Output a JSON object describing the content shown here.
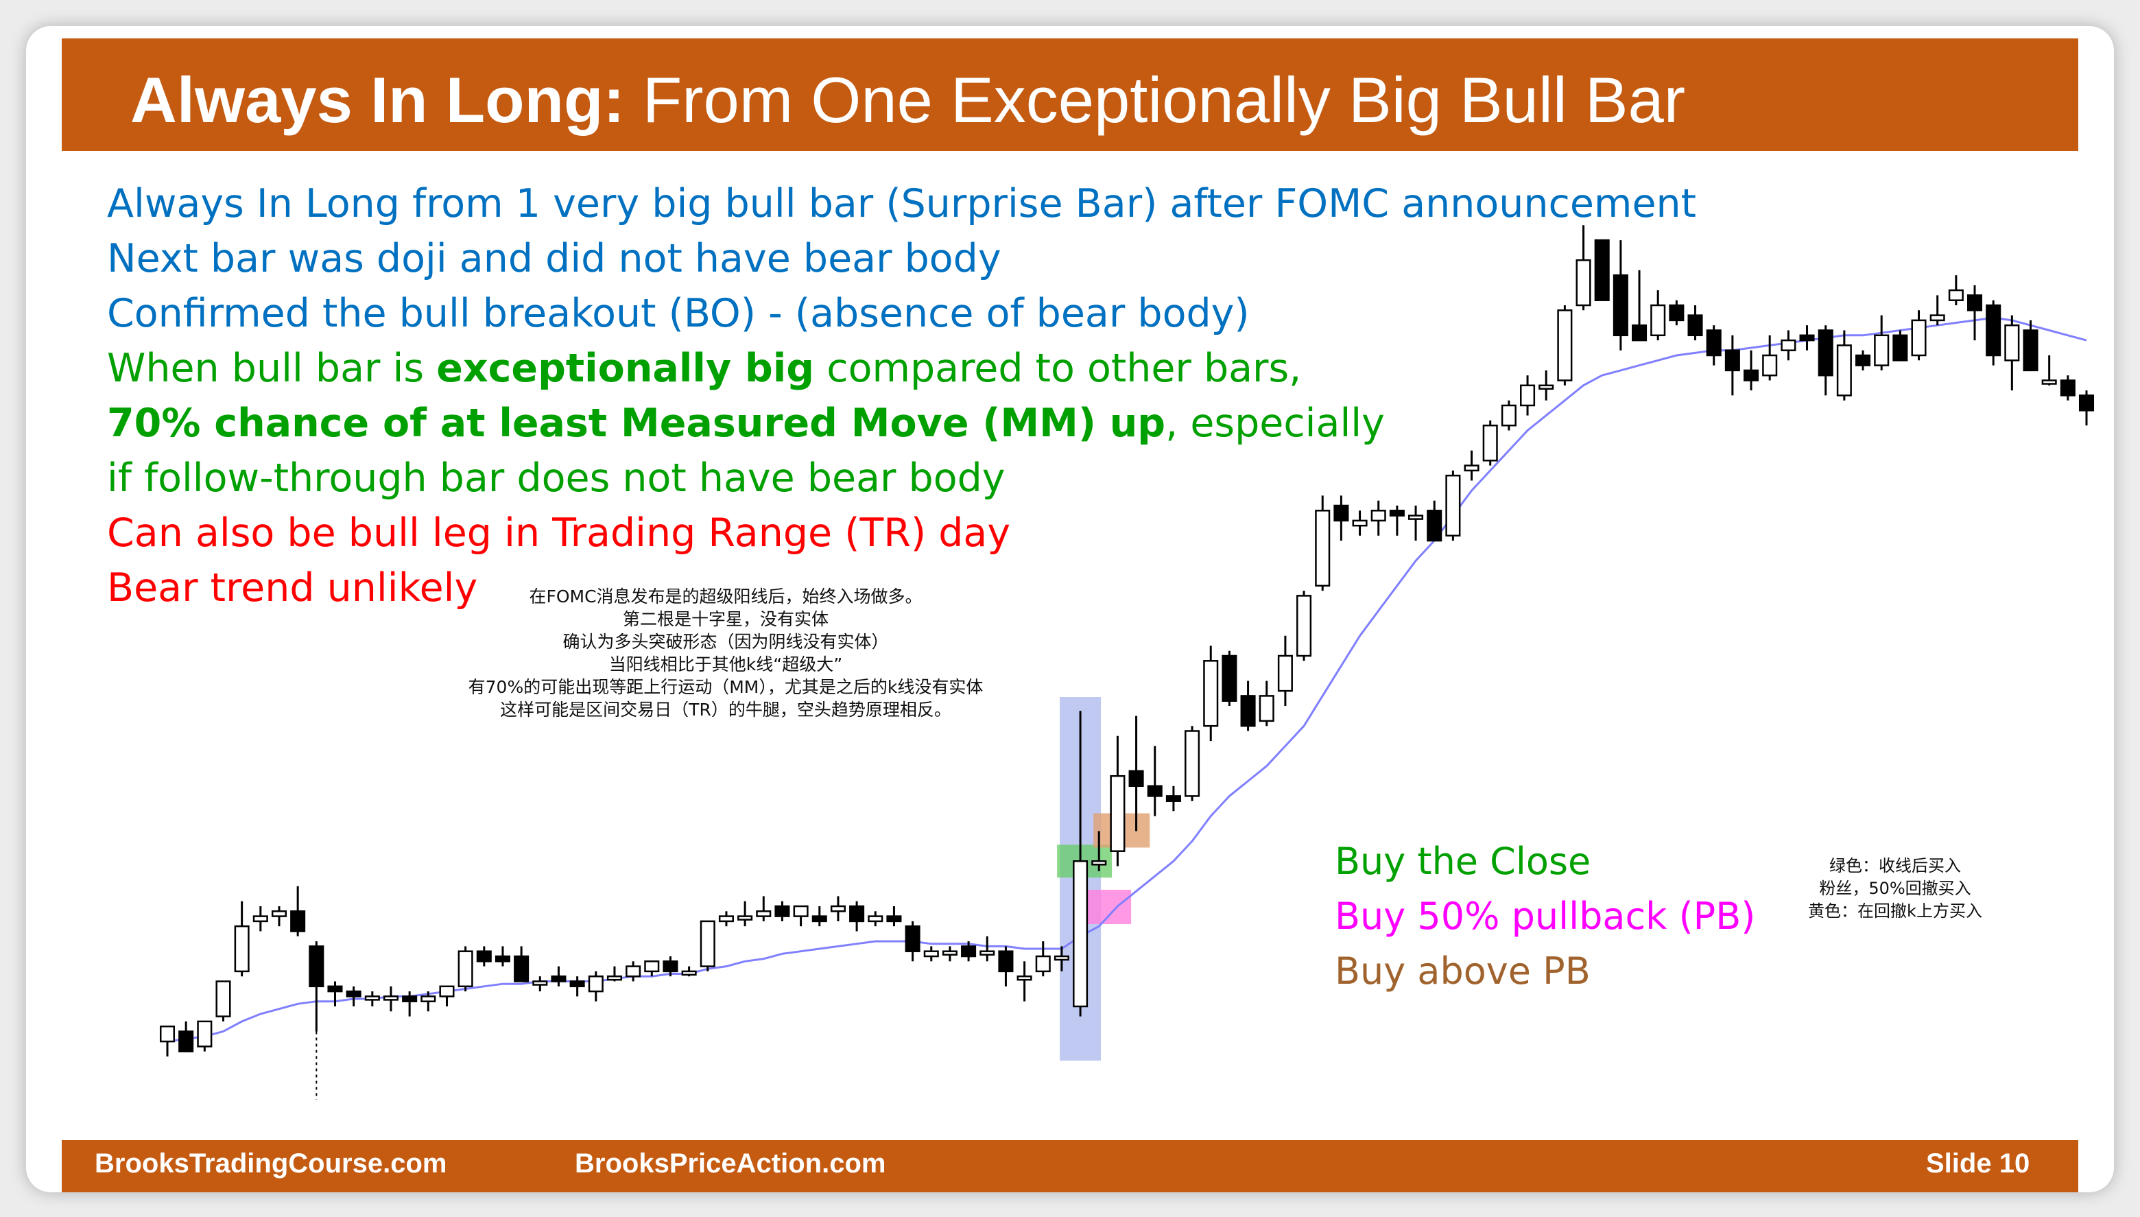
{
  "title": {
    "bold": "Always In Long:",
    "rest": " From One Exceptionally Big Bull Bar"
  },
  "lines": {
    "l1": "Always In Long from 1 very big bull bar (Surprise Bar) after FOMC announcement",
    "l2": "Next bar was doji and did not have bear body",
    "l3": "Confirmed the bull breakout (BO) - (absence of bear body)",
    "l4a": "When bull bar is ",
    "l4b": "exceptionally big",
    "l4c": " compared to other bars,",
    "l5a": "70% chance of at least Measured Move (MM) up",
    "l5b": ", especially",
    "l6": "if follow-through bar does not have bear body",
    "l7": "Can also be bull leg in Trading Range (TR) day",
    "l8": "Bear trend unlikely"
  },
  "cn_notes": [
    "在FOMC消息发布是的超级阳线后，始终入场做多。",
    "第二根是十字星，没有实体",
    "确认为多头突破形态（因为阴线没有实体）",
    "当阳线相比于其他k线“超级大”",
    "有70%的可能出现等距上行运动（MM），尤其是之后的k线没有实体",
    "这样可能是区间交易日（TR）的牛腿，空头趋势原理相反。"
  ],
  "legend": {
    "buy_close": "Buy the Close",
    "buy_pullback": "Buy 50% pullback (PB)",
    "buy_above": "Buy above PB"
  },
  "color_note": [
    "绿色：收线后买入",
    "粉丝，50%回撤买入",
    "黄色：在回撤k上方买入"
  ],
  "footer": {
    "left": "BrooksTradingCourse.com",
    "center": "BrooksPriceAction.com",
    "slide": "Slide  10"
  },
  "colors": {
    "header": "#c55a11",
    "blue_text": "#0070c0",
    "green_text": "#00a000",
    "red_text": "#ff0000",
    "ema": "#8080ff",
    "highlight_bar": "#8c9de6",
    "buy_close_zone": "#66cc66",
    "pullback_zone": "#ff80e0",
    "above_pb_zone": "#e0a070"
  },
  "chart_data": {
    "type": "candlestick",
    "price_range": [
      0,
      100
    ],
    "candles": [
      {
        "o": 3,
        "h": 6,
        "l": 0,
        "c": 6
      },
      {
        "o": 5,
        "h": 7,
        "l": 1,
        "c": 1
      },
      {
        "o": 2,
        "h": 7,
        "l": 1,
        "c": 7
      },
      {
        "o": 8,
        "h": 15,
        "l": 7,
        "c": 15
      },
      {
        "o": 17,
        "h": 31,
        "l": 16,
        "c": 26
      },
      {
        "o": 27,
        "h": 30,
        "l": 25,
        "c": 28
      },
      {
        "o": 28,
        "h": 30,
        "l": 26,
        "c": 29
      },
      {
        "o": 29,
        "h": 34,
        "l": 24,
        "c": 25
      },
      {
        "o": 22,
        "h": 23,
        "l": 5,
        "c": 14
      },
      {
        "o": 14,
        "h": 15,
        "l": 10,
        "c": 13
      },
      {
        "o": 13,
        "h": 14,
        "l": 10,
        "c": 12
      },
      {
        "o": 12,
        "h": 13,
        "l": 10,
        "c": 12
      },
      {
        "o": 12,
        "h": 14,
        "l": 9,
        "c": 12
      },
      {
        "o": 12,
        "h": 13,
        "l": 8,
        "c": 11
      },
      {
        "o": 11,
        "h": 13,
        "l": 9,
        "c": 12
      },
      {
        "o": 12,
        "h": 14,
        "l": 10,
        "c": 14
      },
      {
        "o": 14,
        "h": 22,
        "l": 13,
        "c": 21
      },
      {
        "o": 21,
        "h": 22,
        "l": 18,
        "c": 19
      },
      {
        "o": 20,
        "h": 22,
        "l": 18,
        "c": 19
      },
      {
        "o": 20,
        "h": 22,
        "l": 16,
        "c": 15
      },
      {
        "o": 15,
        "h": 16,
        "l": 13,
        "c": 15
      },
      {
        "o": 16,
        "h": 18,
        "l": 14,
        "c": 15
      },
      {
        "o": 15,
        "h": 16,
        "l": 12,
        "c": 14
      },
      {
        "o": 13,
        "h": 17,
        "l": 11,
        "c": 16
      },
      {
        "o": 16,
        "h": 18,
        "l": 15,
        "c": 16
      },
      {
        "o": 16,
        "h": 19,
        "l": 15,
        "c": 18
      },
      {
        "o": 17,
        "h": 19,
        "l": 16,
        "c": 19
      },
      {
        "o": 19,
        "h": 20,
        "l": 16,
        "c": 17
      },
      {
        "o": 17,
        "h": 18,
        "l": 16,
        "c": 17
      },
      {
        "o": 18,
        "h": 27,
        "l": 17,
        "c": 27
      },
      {
        "o": 27,
        "h": 29,
        "l": 26,
        "c": 28
      },
      {
        "o": 28,
        "h": 31,
        "l": 26,
        "c": 28
      },
      {
        "o": 28,
        "h": 32,
        "l": 27,
        "c": 29
      },
      {
        "o": 30,
        "h": 31,
        "l": 27,
        "c": 28
      },
      {
        "o": 28,
        "h": 30,
        "l": 26,
        "c": 30
      },
      {
        "o": 28,
        "h": 30,
        "l": 26,
        "c": 27
      },
      {
        "o": 29,
        "h": 32,
        "l": 27,
        "c": 30
      },
      {
        "o": 30,
        "h": 31,
        "l": 25,
        "c": 27
      },
      {
        "o": 27,
        "h": 29,
        "l": 26,
        "c": 28
      },
      {
        "o": 28,
        "h": 30,
        "l": 26,
        "c": 27
      },
      {
        "o": 26,
        "h": 27,
        "l": 19,
        "c": 21
      },
      {
        "o": 20,
        "h": 22,
        "l": 19,
        "c": 21
      },
      {
        "o": 21,
        "h": 22,
        "l": 19,
        "c": 21
      },
      {
        "o": 22,
        "h": 23,
        "l": 19,
        "c": 20
      },
      {
        "o": 21,
        "h": 24,
        "l": 19,
        "c": 21
      },
      {
        "o": 21,
        "h": 22,
        "l": 14,
        "c": 17
      },
      {
        "o": 16,
        "h": 19,
        "l": 11,
        "c": 16
      },
      {
        "o": 17,
        "h": 23,
        "l": 16,
        "c": 20
      },
      {
        "o": 20,
        "h": 22,
        "l": 17,
        "c": 20
      },
      {
        "o": 10,
        "h": 69,
        "l": 8,
        "c": 39
      },
      {
        "o": 39,
        "h": 45,
        "l": 37,
        "c": 39
      },
      {
        "o": 41,
        "h": 64,
        "l": 38,
        "c": 56
      },
      {
        "o": 57,
        "h": 68,
        "l": 45,
        "c": 54
      },
      {
        "o": 54,
        "h": 62,
        "l": 48,
        "c": 52
      },
      {
        "o": 52,
        "h": 54,
        "l": 49,
        "c": 51
      },
      {
        "o": 52,
        "h": 66,
        "l": 51,
        "c": 65
      },
      {
        "o": 66,
        "h": 82,
        "l": 63,
        "c": 79
      },
      {
        "o": 80,
        "h": 81,
        "l": 70,
        "c": 71
      },
      {
        "o": 72,
        "h": 75,
        "l": 65,
        "c": 66
      },
      {
        "o": 67,
        "h": 75,
        "l": 66,
        "c": 72
      },
      {
        "o": 73,
        "h": 84,
        "l": 70,
        "c": 80
      },
      {
        "o": 80,
        "h": 93,
        "l": 79,
        "c": 92
      },
      {
        "o": 94,
        "h": 112,
        "l": 93,
        "c": 109
      },
      {
        "o": 110,
        "h": 112,
        "l": 103,
        "c": 107
      },
      {
        "o": 106,
        "h": 109,
        "l": 104,
        "c": 107
      },
      {
        "o": 107,
        "h": 111,
        "l": 104,
        "c": 109
      },
      {
        "o": 109,
        "h": 110,
        "l": 104,
        "c": 108
      },
      {
        "o": 108,
        "h": 110,
        "l": 103,
        "c": 108
      },
      {
        "o": 109,
        "h": 111,
        "l": 103,
        "c": 103
      },
      {
        "o": 104,
        "h": 117,
        "l": 103,
        "c": 116
      },
      {
        "o": 117,
        "h": 121,
        "l": 115,
        "c": 118
      },
      {
        "o": 119,
        "h": 127,
        "l": 118,
        "c": 126
      },
      {
        "o": 126,
        "h": 131,
        "l": 125,
        "c": 130
      },
      {
        "o": 130,
        "h": 136,
        "l": 128,
        "c": 134
      },
      {
        "o": 134,
        "h": 137,
        "l": 131,
        "c": 134
      },
      {
        "o": 135,
        "h": 150,
        "l": 134,
        "c": 149
      },
      {
        "o": 150,
        "h": 166,
        "l": 149,
        "c": 159
      },
      {
        "o": 163,
        "h": 162,
        "l": 152,
        "c": 151
      },
      {
        "o": 156,
        "h": 163,
        "l": 141,
        "c": 144
      },
      {
        "o": 146,
        "h": 157,
        "l": 143,
        "c": 143
      },
      {
        "o": 144,
        "h": 153,
        "l": 143,
        "c": 150
      },
      {
        "o": 150,
        "h": 151,
        "l": 146,
        "c": 147
      },
      {
        "o": 148,
        "h": 150,
        "l": 143,
        "c": 144
      },
      {
        "o": 145,
        "h": 146,
        "l": 138,
        "c": 140
      },
      {
        "o": 141,
        "h": 144,
        "l": 132,
        "c": 137
      },
      {
        "o": 137,
        "h": 141,
        "l": 133,
        "c": 135
      },
      {
        "o": 136,
        "h": 144,
        "l": 135,
        "c": 140
      },
      {
        "o": 141,
        "h": 145,
        "l": 139,
        "c": 143
      },
      {
        "o": 144,
        "h": 146,
        "l": 141,
        "c": 143
      },
      {
        "o": 145,
        "h": 146,
        "l": 132,
        "c": 136
      },
      {
        "o": 132,
        "h": 145,
        "l": 131,
        "c": 142
      },
      {
        "o": 140,
        "h": 141,
        "l": 137,
        "c": 138
      },
      {
        "o": 138,
        "h": 148,
        "l": 137,
        "c": 144
      },
      {
        "o": 144,
        "h": 145,
        "l": 139,
        "c": 139
      },
      {
        "o": 140,
        "h": 149,
        "l": 139,
        "c": 147
      },
      {
        "o": 147,
        "h": 152,
        "l": 146,
        "c": 148
      },
      {
        "o": 151,
        "h": 156,
        "l": 150,
        "c": 153
      },
      {
        "o": 152,
        "h": 154,
        "l": 143,
        "c": 149
      },
      {
        "o": 150,
        "h": 151,
        "l": 138,
        "c": 140
      },
      {
        "o": 139,
        "h": 148,
        "l": 133,
        "c": 146
      },
      {
        "o": 145,
        "h": 147,
        "l": 137,
        "c": 137
      },
      {
        "o": 135,
        "h": 140,
        "l": 134,
        "c": 135
      },
      {
        "o": 135,
        "h": 136,
        "l": 131,
        "c": 132
      },
      {
        "o": 132,
        "h": 133,
        "l": 126,
        "c": 129
      }
    ],
    "ema": [
      3,
      3.5,
      4,
      5,
      7,
      8.5,
      9.5,
      10.5,
      11,
      11,
      11.5,
      11.5,
      12,
      12,
      12.5,
      13,
      13.5,
      14,
      14.5,
      14.5,
      15,
      15,
      15,
      15,
      15.5,
      16,
      16,
      16.5,
      16.5,
      17.5,
      18,
      19,
      19.5,
      20.5,
      21,
      21.5,
      22,
      22.5,
      23,
      23,
      23,
      22.5,
      22.5,
      22.5,
      22,
      22,
      21.5,
      21.5,
      21.5,
      24,
      26,
      30,
      33,
      36,
      39,
      43,
      48,
      52,
      55,
      58,
      62,
      66,
      72,
      78,
      84,
      89,
      94,
      99,
      103,
      108,
      113,
      117,
      121,
      125,
      128,
      131,
      134,
      136,
      137,
      138,
      139,
      140,
      140.5,
      141,
      141,
      141.5,
      142,
      142.5,
      143,
      143.5,
      144,
      144,
      144.5,
      145,
      145.5,
      146,
      146.5,
      147,
      147.5,
      147,
      146,
      145,
      144,
      143
    ]
  }
}
